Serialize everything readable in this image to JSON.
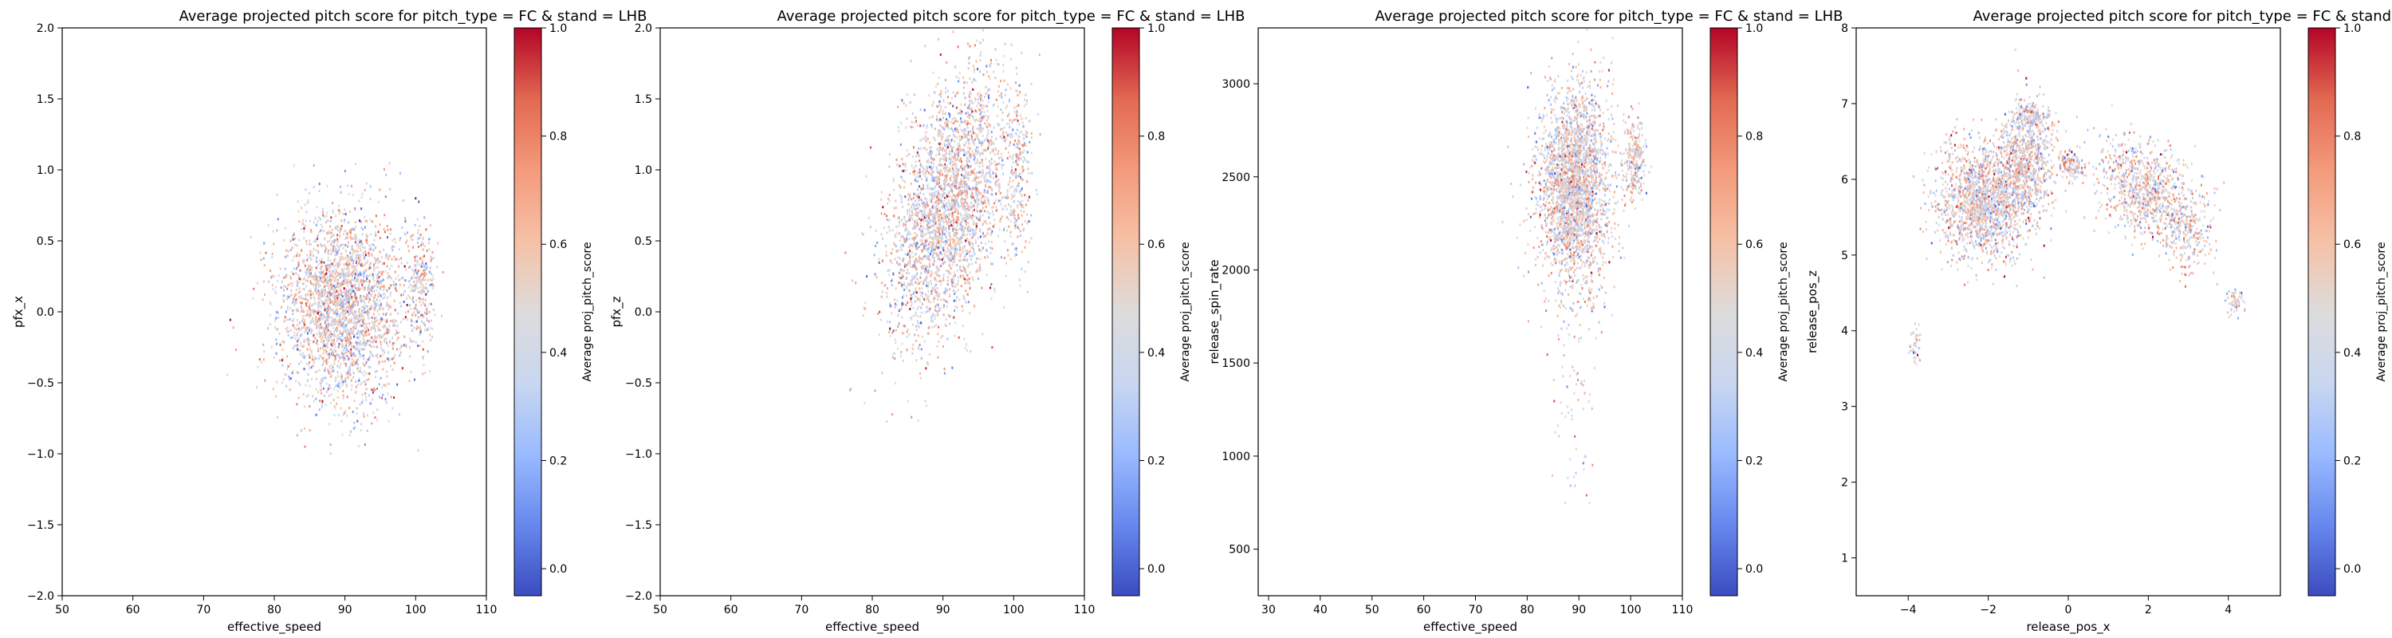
{
  "colormap": {
    "name": "coolwarm",
    "stops": [
      "#3b4cc0",
      "#6788ee",
      "#9abbff",
      "#c9d7f0",
      "#dddcdc",
      "#f6c1a6",
      "#f49a7b",
      "#e26952",
      "#b40426"
    ]
  },
  "chart_data": [
    {
      "type": "scatter",
      "title": "Average projected pitch score for pitch_type = FC & stand = LHB",
      "xlabel": "effective_speed",
      "ylabel": "pfx_x",
      "colorbar_label": "Average proj_pitch_score",
      "xlim": [
        50,
        110
      ],
      "ylim": [
        -2.0,
        2.0
      ],
      "xticks": [
        "50",
        "60",
        "70",
        "80",
        "90",
        "100",
        "110"
      ],
      "yticks": [
        "−2.0",
        "−1.5",
        "−1.0",
        "−0.5",
        "0.0",
        "0.5",
        "1.0",
        "1.5",
        "2.0"
      ],
      "clim": [
        -0.05,
        1.0
      ],
      "cticks": [
        "0.0",
        "0.2",
        "0.4",
        "0.6",
        "0.8",
        "1.0"
      ],
      "clusters": [
        {
          "cx": 89.5,
          "cy": 0.05,
          "sx": 4.5,
          "sy": 0.33,
          "n": 2600,
          "corr": 0.0
        },
        {
          "cx": 100.5,
          "cy": 0.2,
          "sx": 1.0,
          "sy": 0.25,
          "n": 250,
          "corr": 0.0
        }
      ]
    },
    {
      "type": "scatter",
      "title": "Average projected pitch score for pitch_type = FC & stand = LHB",
      "xlabel": "effective_speed",
      "ylabel": "pfx_z",
      "colorbar_label": "Average proj_pitch_score",
      "xlim": [
        50,
        110
      ],
      "ylim": [
        -2.0,
        2.0
      ],
      "xticks": [
        "50",
        "60",
        "70",
        "80",
        "90",
        "100",
        "110"
      ],
      "yticks": [
        "−2.0",
        "−1.5",
        "−1.0",
        "−0.5",
        "0.0",
        "0.5",
        "1.0",
        "1.5",
        "2.0"
      ],
      "clim": [
        -0.05,
        1.0
      ],
      "cticks": [
        "0.0",
        "0.2",
        "0.4",
        "0.6",
        "0.8",
        "1.0"
      ],
      "clusters": [
        {
          "cx": 90.5,
          "cy": 0.75,
          "sx": 4.2,
          "sy": 0.45,
          "n": 2800,
          "corr": 0.45
        },
        {
          "cx": 100.5,
          "cy": 1.0,
          "sx": 1.0,
          "sy": 0.3,
          "n": 250,
          "corr": 0.0
        }
      ]
    },
    {
      "type": "scatter",
      "title": "Average projected pitch score for pitch_type = FC & stand = LHB",
      "xlabel": "effective_speed",
      "ylabel": "release_spin_rate",
      "colorbar_label": "Average proj_pitch_score",
      "xlim": [
        28,
        110
      ],
      "ylim": [
        250,
        3300
      ],
      "xticks": [
        "30",
        "40",
        "50",
        "60",
        "70",
        "80",
        "90",
        "100",
        "110"
      ],
      "xtickvals": [
        30,
        40,
        50,
        60,
        70,
        80,
        90,
        100,
        110
      ],
      "yticks": [
        "500",
        "1000",
        "1500",
        "2000",
        "2500",
        "3000"
      ],
      "ytickvals": [
        500,
        1000,
        1500,
        2000,
        2500,
        3000
      ],
      "clim": [
        -0.05,
        1.0
      ],
      "cticks": [
        "0.0",
        "0.2",
        "0.4",
        "0.6",
        "0.8",
        "1.0"
      ],
      "clusters": [
        {
          "cx": 89.0,
          "cy": 2450,
          "sx": 3.5,
          "sy": 260,
          "n": 2600,
          "corr": 0.0
        },
        {
          "cx": 100.5,
          "cy": 2600,
          "sx": 1.0,
          "sy": 120,
          "n": 250,
          "corr": 0.0
        },
        {
          "cx": 89.0,
          "cy": 1300,
          "sx": 2.5,
          "sy": 380,
          "n": 70,
          "corr": 0.0
        }
      ]
    },
    {
      "type": "scatter",
      "title": "Average projected pitch score for pitch_type = FC & stand = LHB",
      "xlabel": "release_pos_x",
      "ylabel": "release_pos_z",
      "colorbar_label": "Average proj_pitch_score",
      "xlim": [
        -5.3,
        5.3
      ],
      "ylim": [
        0.5,
        8.0
      ],
      "xticks": [
        "−4",
        "−2",
        "0",
        "2",
        "4"
      ],
      "xtickvals": [
        -4,
        -2,
        0,
        2,
        4
      ],
      "yticks": [
        "1",
        "2",
        "3",
        "4",
        "5",
        "6",
        "7",
        "8"
      ],
      "ytickvals": [
        1,
        2,
        3,
        4,
        5,
        6,
        7,
        8
      ],
      "clim": [
        -0.05,
        1.0
      ],
      "cticks": [
        "0.0",
        "0.2",
        "0.4",
        "0.6",
        "0.8",
        "1.0"
      ],
      "clusters": [
        {
          "cx": -2.1,
          "cy": 5.75,
          "sx": 0.6,
          "sy": 0.38,
          "n": 1600,
          "corr": 0.0
        },
        {
          "cx": -1.1,
          "cy": 6.25,
          "sx": 0.35,
          "sy": 0.35,
          "n": 700,
          "corr": 0.0
        },
        {
          "cx": -0.95,
          "cy": 6.85,
          "sx": 0.25,
          "sy": 0.08,
          "n": 150,
          "corr": 0.0
        },
        {
          "cx": 0.05,
          "cy": 6.2,
          "sx": 0.15,
          "sy": 0.1,
          "n": 120,
          "corr": 0.0
        },
        {
          "cx": 1.9,
          "cy": 5.85,
          "sx": 0.6,
          "sy": 0.35,
          "n": 900,
          "corr": -0.4
        },
        {
          "cx": 3.0,
          "cy": 5.3,
          "sx": 0.3,
          "sy": 0.3,
          "n": 200,
          "corr": 0.0
        },
        {
          "cx": 4.15,
          "cy": 4.4,
          "sx": 0.1,
          "sy": 0.1,
          "n": 60,
          "corr": 0.0
        },
        {
          "cx": -3.85,
          "cy": 3.8,
          "sx": 0.08,
          "sy": 0.12,
          "n": 40,
          "corr": 0.0
        }
      ]
    }
  ]
}
